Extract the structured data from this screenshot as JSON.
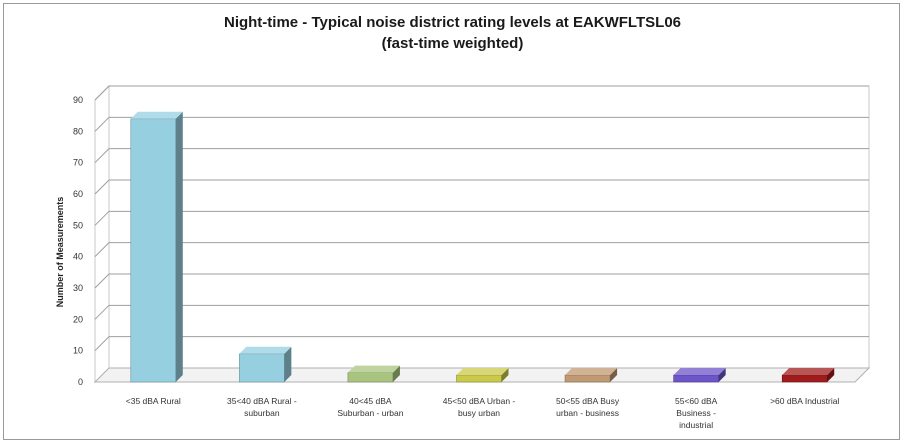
{
  "chart_data": {
    "type": "bar",
    "title_line1": "Night-time - Typical noise district rating levels at EAKWFLTSL06",
    "title_line2": "(fast-time weighted)",
    "ylabel": "Number of Measurements",
    "xlabel": "",
    "ylim": [
      0,
      90
    ],
    "yticks": [
      0,
      10,
      20,
      30,
      40,
      50,
      60,
      70,
      80,
      90
    ],
    "grid": true,
    "style": "3d-column",
    "categories": [
      [
        "<35 dBA Rural"
      ],
      [
        "35<40 dBA Rural -",
        "suburban"
      ],
      [
        "40<45 dBA",
        "Suburban - urban"
      ],
      [
        "45<50 dBA Urban -",
        "busy urban"
      ],
      [
        "50<55 dBA Busy",
        "urban - business"
      ],
      [
        "55<60 dBA",
        "Business -",
        "industrial"
      ],
      [
        ">60 dBA Industrial"
      ]
    ],
    "values": [
      84,
      9,
      3,
      0,
      0,
      0,
      0
    ],
    "colors": [
      "#96cfe0",
      "#96cfe0",
      "#a9c47f",
      "#c9c94a",
      "#c09a72",
      "#6b55c8",
      "#a01c1c"
    ]
  }
}
